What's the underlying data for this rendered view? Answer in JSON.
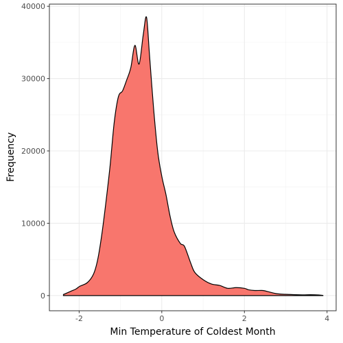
{
  "chart_data": {
    "type": "area",
    "xlabel": "Min Temperature of Coldest Month",
    "ylabel": "Frequency",
    "xlim": [
      -2.72,
      4.22
    ],
    "ylim": [
      -2100,
      40300
    ],
    "x_ticks": [
      -2,
      0,
      2,
      4
    ],
    "x_tick_labels": [
      "-2",
      "0",
      "2",
      "4"
    ],
    "y_ticks": [
      0,
      10000,
      20000,
      30000,
      40000
    ],
    "y_tick_labels": [
      "0",
      "10000",
      "20000",
      "30000",
      "40000"
    ],
    "grid": true,
    "fill_color": "#F8766D",
    "line_color": "#000000",
    "points": [
      [
        -2.38,
        150
      ],
      [
        -2.2,
        600
      ],
      [
        -2.08,
        900
      ],
      [
        -1.98,
        1300
      ],
      [
        -1.8,
        1800
      ],
      [
        -1.65,
        3000
      ],
      [
        -1.55,
        5000
      ],
      [
        -1.45,
        8500
      ],
      [
        -1.35,
        13000
      ],
      [
        -1.25,
        18000
      ],
      [
        -1.15,
        24000
      ],
      [
        -1.05,
        27500
      ],
      [
        -0.95,
        28300
      ],
      [
        -0.85,
        29800
      ],
      [
        -0.75,
        31500
      ],
      [
        -0.65,
        34600
      ],
      [
        -0.55,
        32000
      ],
      [
        -0.45,
        36000
      ],
      [
        -0.37,
        38500
      ],
      [
        -0.3,
        33500
      ],
      [
        -0.2,
        26000
      ],
      [
        -0.1,
        20000
      ],
      [
        0.0,
        16500
      ],
      [
        0.1,
        14000
      ],
      [
        0.2,
        11000
      ],
      [
        0.3,
        8800
      ],
      [
        0.45,
        7200
      ],
      [
        0.55,
        6800
      ],
      [
        0.7,
        4500
      ],
      [
        0.8,
        3200
      ],
      [
        1.0,
        2200
      ],
      [
        1.2,
        1600
      ],
      [
        1.4,
        1400
      ],
      [
        1.6,
        1000
      ],
      [
        1.8,
        1100
      ],
      [
        2.0,
        1000
      ],
      [
        2.1,
        800
      ],
      [
        2.25,
        700
      ],
      [
        2.45,
        700
      ],
      [
        2.6,
        500
      ],
      [
        2.8,
        250
      ],
      [
        3.1,
        150
      ],
      [
        3.4,
        100
      ],
      [
        3.6,
        120
      ],
      [
        3.8,
        80
      ],
      [
        3.9,
        20
      ]
    ]
  }
}
